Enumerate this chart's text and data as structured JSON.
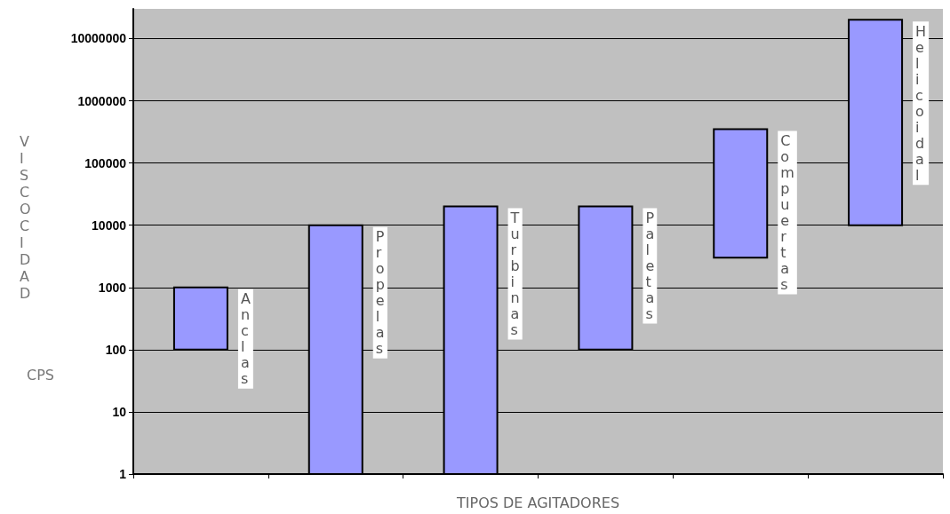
{
  "chart_data": {
    "type": "bar",
    "xlabel": "TIPOS DE AGITADORES",
    "ylabel": "VISCOCIDAD",
    "annotations": [
      "CPS"
    ],
    "categories": [
      "Anclas",
      "Propelas",
      "Turbinas",
      "Paletas",
      "Compuertas",
      "Helicoidal"
    ],
    "base": [
      100,
      1,
      1,
      100,
      3000,
      10000
    ],
    "values": [
      900,
      9999,
      19999,
      19900,
      347000,
      19990000
    ],
    "color": "#9999ff",
    "log": true,
    "ylim": [
      1,
      30000000
    ],
    "yticks": [
      1,
      10,
      100,
      1000,
      10000,
      100000,
      1000000,
      10000000
    ],
    "grid": "y",
    "tick_labels": "y"
  }
}
